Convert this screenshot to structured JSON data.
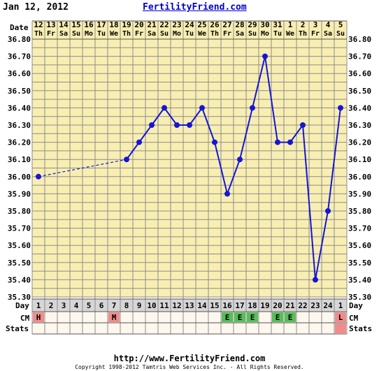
{
  "header": {
    "date": "Jan 12, 2012",
    "brand": "FertilityFriend.com"
  },
  "footer": {
    "url": "http://www.FertilityFriend.com",
    "copyright": "Copyright 1998-2012 Tamtris Web Services Inc. - All Rights Reserved."
  },
  "colors": {
    "plot_background": "#f8eeb2",
    "row_background": "#fdf7ee",
    "grid_line": "#8c8c8c",
    "line": "#1515d8",
    "marker": "#1515d8",
    "day_cell": "#d6d6d6",
    "menses_cell": "#f28c8c",
    "egg_white_cell": "#58bf58"
  },
  "chart_data": {
    "type": "line",
    "title": "",
    "xlabel": "",
    "ylabel": "",
    "row_labels": {
      "date": "Date",
      "day": "Day",
      "cm": "CM",
      "stats": "Stats"
    },
    "dates": [
      "12",
      "13",
      "14",
      "15",
      "16",
      "17",
      "18",
      "19",
      "20",
      "21",
      "22",
      "23",
      "24",
      "25",
      "26",
      "27",
      "28",
      "29",
      "30",
      "31",
      "1",
      "2",
      "3",
      "4",
      "5"
    ],
    "weekdays": [
      "Th",
      "Fr",
      "Sa",
      "Su",
      "Mo",
      "Tu",
      "We",
      "Th",
      "Fr",
      "Sa",
      "Su",
      "Mo",
      "Tu",
      "We",
      "Th",
      "Fr",
      "Sa",
      "Su",
      "Mo",
      "Tu",
      "We",
      "Th",
      "Fr",
      "Sa",
      "Su"
    ],
    "cycle_days": [
      "1",
      "2",
      "3",
      "4",
      "5",
      "6",
      "7",
      "8",
      "9",
      "10",
      "11",
      "12",
      "13",
      "14",
      "15",
      "16",
      "17",
      "18",
      "19",
      "20",
      "21",
      "22",
      "23",
      "24",
      "1"
    ],
    "temperatures": [
      36.0,
      null,
      null,
      null,
      null,
      null,
      null,
      36.1,
      36.2,
      36.3,
      36.4,
      36.3,
      36.3,
      36.4,
      36.2,
      35.9,
      36.1,
      36.4,
      36.7,
      36.2,
      36.2,
      36.3,
      35.4,
      35.8,
      36.4
    ],
    "cm": [
      "H",
      "",
      "",
      "",
      "",
      "",
      "M",
      "",
      "",
      "",
      "",
      "",
      "",
      "",
      "",
      "E",
      "E",
      "E",
      "",
      "E",
      "E",
      "",
      "",
      "",
      "L"
    ],
    "ylim": [
      35.3,
      36.8
    ],
    "yticks": [
      "35.30",
      "35.40",
      "35.50",
      "35.60",
      "35.70",
      "35.80",
      "35.90",
      "36.00",
      "36.10",
      "36.20",
      "36.30",
      "36.40",
      "36.50",
      "36.60",
      "36.70",
      "36.80"
    ],
    "grid": true,
    "legend": "none"
  }
}
